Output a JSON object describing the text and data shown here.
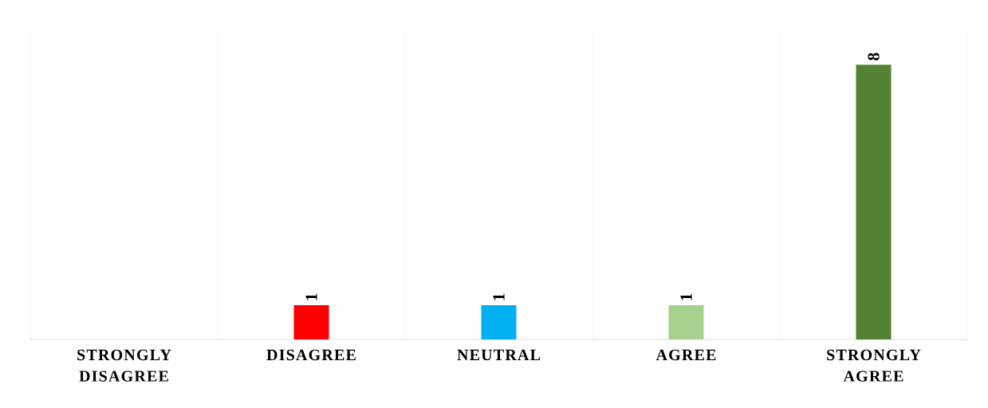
{
  "chart_data": {
    "type": "bar",
    "categories": [
      "STRONGLY DISAGREE",
      "DISAGREE",
      "NEUTRAL",
      "AGREE",
      "STRONGLY AGREE"
    ],
    "values": [
      0,
      1,
      1,
      1,
      8
    ],
    "colors": [
      "#4472c4",
      "#ff0000",
      "#00b0f0",
      "#a9d18e",
      "#548235"
    ],
    "value_labels": [
      null,
      "1",
      "1",
      "1",
      "8"
    ],
    "ylim": [
      0,
      9
    ],
    "grid": "x",
    "tick_labels": "x"
  }
}
